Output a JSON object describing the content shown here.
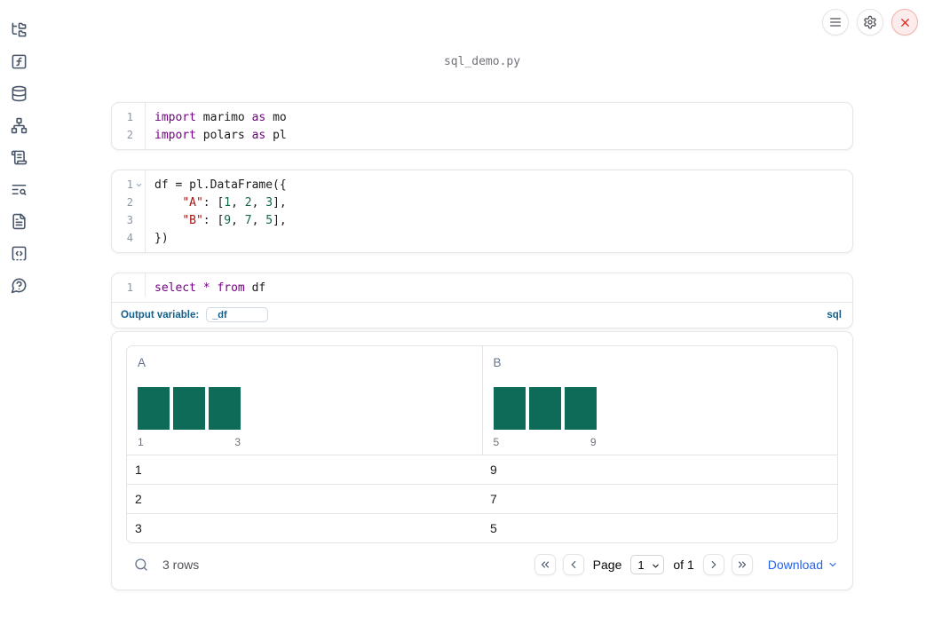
{
  "title": "sql_demo.py",
  "topbar": {
    "icons": [
      "menu",
      "settings",
      "shutdown"
    ]
  },
  "sidebar": {
    "icons": [
      "folder-tree",
      "function-square",
      "database",
      "dependency-graph",
      "scroll-logs",
      "text-search",
      "file-document",
      "code-snippets",
      "help-chat"
    ]
  },
  "colors": {
    "keyword": "#770088",
    "number": "#116644",
    "string": "#aa1111",
    "sql_accent_blue": "#15608a",
    "link_blue": "#2563eb",
    "histogram_bar_green": "#0e6b58",
    "close_button_red": "#dc2626"
  },
  "cells": [
    {
      "kind": "code",
      "lines": [
        {
          "n": "1",
          "tokens": [
            {
              "t": "import",
              "c": "kw"
            },
            {
              "t": " marimo ",
              "c": "pl"
            },
            {
              "t": "as",
              "c": "kw"
            },
            {
              "t": " mo",
              "c": "pl"
            }
          ]
        },
        {
          "n": "2",
          "tokens": [
            {
              "t": "import",
              "c": "kw"
            },
            {
              "t": " polars ",
              "c": "pl"
            },
            {
              "t": "as",
              "c": "kw"
            },
            {
              "t": " pl",
              "c": "pl"
            }
          ]
        }
      ]
    },
    {
      "kind": "code",
      "lines": [
        {
          "n": "1",
          "fold": true,
          "tokens": [
            {
              "t": "df = pl.DataFrame({",
              "c": "pl"
            }
          ]
        },
        {
          "n": "2",
          "tokens": [
            {
              "t": "    ",
              "c": "pl"
            },
            {
              "t": "\"A\"",
              "c": "str"
            },
            {
              "t": ": [",
              "c": "pl"
            },
            {
              "t": "1",
              "c": "num"
            },
            {
              "t": ", ",
              "c": "pl"
            },
            {
              "t": "2",
              "c": "num"
            },
            {
              "t": ", ",
              "c": "pl"
            },
            {
              "t": "3",
              "c": "num"
            },
            {
              "t": "],",
              "c": "pl"
            }
          ]
        },
        {
          "n": "3",
          "tokens": [
            {
              "t": "    ",
              "c": "pl"
            },
            {
              "t": "\"B\"",
              "c": "str"
            },
            {
              "t": ": [",
              "c": "pl"
            },
            {
              "t": "9",
              "c": "num"
            },
            {
              "t": ", ",
              "c": "pl"
            },
            {
              "t": "7",
              "c": "num"
            },
            {
              "t": ", ",
              "c": "pl"
            },
            {
              "t": "5",
              "c": "num"
            },
            {
              "t": "],",
              "c": "pl"
            }
          ]
        },
        {
          "n": "4",
          "tokens": [
            {
              "t": "})",
              "c": "pl"
            }
          ]
        }
      ]
    },
    {
      "kind": "sql",
      "lines": [
        {
          "n": "1",
          "tokens": [
            {
              "t": "select",
              "c": "kw"
            },
            {
              "t": " ",
              "c": "pl"
            },
            {
              "t": "*",
              "c": "kw"
            },
            {
              "t": " ",
              "c": "pl"
            },
            {
              "t": "from",
              "c": "kw"
            },
            {
              "t": " df",
              "c": "pl"
            }
          ]
        }
      ],
      "footer": {
        "label": "Output variable:",
        "value": "_df",
        "lang": "sql"
      }
    }
  ],
  "table": {
    "columns": [
      {
        "name": "A",
        "histogram": {
          "bars": [
            1,
            1,
            1
          ],
          "min_label": "1",
          "max_label": "3"
        }
      },
      {
        "name": "B",
        "histogram": {
          "bars": [
            1,
            1,
            1
          ],
          "min_label": "5",
          "max_label": "9"
        }
      }
    ],
    "rows": [
      [
        "1",
        "9"
      ],
      [
        "2",
        "7"
      ],
      [
        "3",
        "5"
      ]
    ],
    "footer": {
      "row_count": "3 rows",
      "page_label": "Page",
      "page_value": "1",
      "of_label": "of 1",
      "download_label": "Download"
    }
  }
}
